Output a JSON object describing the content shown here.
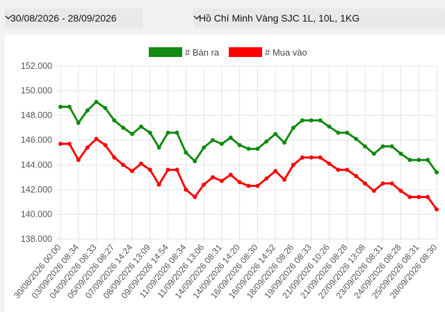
{
  "filters": {
    "date_range": "30/08/2026 - 28/09/2026",
    "gold_type": "Hồ Chí Minh Vàng SJC 1L, 10L, 1KG"
  },
  "icons": {
    "dropdown": "chevron-down-icon"
  },
  "chart_data": {
    "type": "line",
    "title": "",
    "xlabel": "",
    "ylabel": "",
    "ylim": [
      138000,
      152000
    ],
    "y_ticks": [
      "138.000",
      "140.000",
      "142.000",
      "144.000",
      "146.000",
      "148.000",
      "150.000",
      "152.000"
    ],
    "x_labels": [
      "30/08/2026 00:00",
      "03/09/2026 08:34",
      "04/09/2026 08:33",
      "05/09/2026 08:27",
      "07/09/2026 14:24",
      "08/09/2026 13:09",
      "09/09/2026 14:54",
      "11/09/2026 08:34",
      "11/09/2026 13:06",
      "14/09/2026 08:31",
      "14/09/2026 14:20",
      "16/09/2026 08:30",
      "16/09/2026 14:52",
      "18/09/2026 08:26",
      "19/09/2026 08:33",
      "21/09/2026 10:26",
      "21/09/2026 08:28",
      "22/09/2026 13:08",
      "23/09/2026 08:31",
      "24/09/2026 08:28",
      "25/09/2026 08:31",
      "28/09/2026 08:30"
    ],
    "legend_position": "top",
    "grid": true,
    "series": [
      {
        "name": "# Bán ra",
        "color": "#108a10",
        "values": [
          148700,
          148700,
          147400,
          148400,
          149100,
          148600,
          147600,
          147000,
          146500,
          147100,
          146600,
          145400,
          146600,
          146600,
          145000,
          144300,
          145400,
          146000,
          145700,
          146200,
          145600,
          145300,
          145300,
          145900,
          146500,
          145800,
          147000,
          147600,
          147600,
          147600,
          147100,
          146600,
          146600,
          146100,
          145500,
          144900,
          145500,
          145500,
          144900,
          144400,
          144400,
          144400,
          143400
        ]
      },
      {
        "name": "# Mua vào",
        "color": "#ff0000",
        "values": [
          145700,
          145700,
          144400,
          145400,
          146100,
          145600,
          144600,
          144000,
          143500,
          144100,
          143600,
          142400,
          143600,
          143600,
          142000,
          141400,
          142400,
          143000,
          142700,
          143200,
          142600,
          142300,
          142300,
          142900,
          143500,
          142800,
          144000,
          144600,
          144600,
          144600,
          144100,
          143600,
          143600,
          143100,
          142500,
          141900,
          142500,
          142500,
          141900,
          141400,
          141400,
          141400,
          140400
        ]
      }
    ]
  }
}
